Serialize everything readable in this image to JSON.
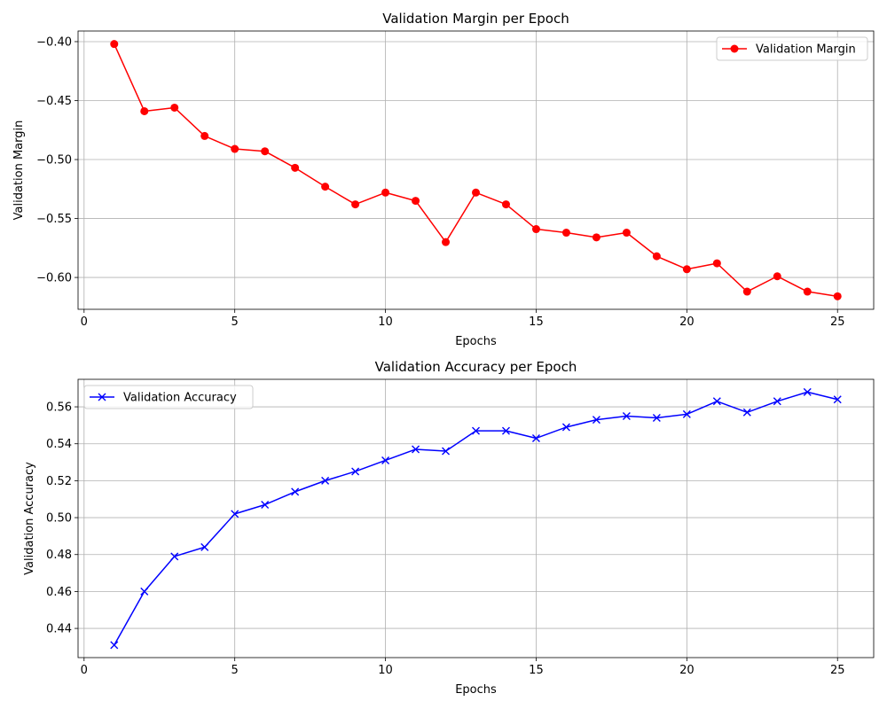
{
  "chart_data": [
    {
      "type": "line",
      "title": "Validation Margin per Epoch",
      "xlabel": "Epochs",
      "ylabel": "Validation Margin",
      "xlim": [
        -0.2,
        26.2
      ],
      "ylim": [
        -0.627,
        -0.391
      ],
      "xticks": [
        0,
        5,
        10,
        15,
        20,
        25
      ],
      "xtick_labels": [
        "0",
        "5",
        "10",
        "15",
        "20",
        "25"
      ],
      "yticks": [
        -0.4,
        -0.45,
        -0.5,
        -0.55,
        -0.6
      ],
      "ytick_labels": [
        "−0.40",
        "−0.45",
        "−0.50",
        "−0.55",
        "−0.60"
      ],
      "grid": true,
      "legend_position": "upper right",
      "series": [
        {
          "name": "Validation Margin",
          "color": "#ff0000",
          "marker": "circle",
          "x": [
            1,
            2,
            3,
            4,
            5,
            6,
            7,
            8,
            9,
            10,
            11,
            12,
            13,
            14,
            15,
            16,
            17,
            18,
            19,
            20,
            21,
            22,
            23,
            24,
            25
          ],
          "y": [
            -0.402,
            -0.459,
            -0.456,
            -0.48,
            -0.491,
            -0.493,
            -0.507,
            -0.523,
            -0.538,
            -0.528,
            -0.535,
            -0.57,
            -0.528,
            -0.538,
            -0.559,
            -0.562,
            -0.566,
            -0.562,
            -0.582,
            -0.593,
            -0.588,
            -0.612,
            -0.599,
            -0.612,
            -0.616
          ]
        }
      ]
    },
    {
      "type": "line",
      "title": "Validation Accuracy per Epoch",
      "xlabel": "Epochs",
      "ylabel": "Validation Accuracy",
      "xlim": [
        -0.2,
        26.2
      ],
      "ylim": [
        0.4242,
        0.5749
      ],
      "xticks": [
        0,
        5,
        10,
        15,
        20,
        25
      ],
      "xtick_labels": [
        "0",
        "5",
        "10",
        "15",
        "20",
        "25"
      ],
      "yticks": [
        0.44,
        0.46,
        0.48,
        0.5,
        0.52,
        0.54,
        0.56
      ],
      "ytick_labels": [
        "0.44",
        "0.46",
        "0.48",
        "0.50",
        "0.52",
        "0.54",
        "0.56"
      ],
      "grid": true,
      "legend_position": "upper left",
      "series": [
        {
          "name": "Validation Accuracy",
          "color": "#0000ff",
          "marker": "x",
          "x": [
            1,
            2,
            3,
            4,
            5,
            6,
            7,
            8,
            9,
            10,
            11,
            12,
            13,
            14,
            15,
            16,
            17,
            18,
            19,
            20,
            21,
            22,
            23,
            24,
            25
          ],
          "y": [
            0.431,
            0.46,
            0.479,
            0.484,
            0.502,
            0.507,
            0.514,
            0.52,
            0.525,
            0.531,
            0.537,
            0.536,
            0.547,
            0.547,
            0.543,
            0.549,
            0.553,
            0.555,
            0.554,
            0.556,
            0.563,
            0.557,
            0.563,
            0.568,
            0.564
          ]
        }
      ]
    }
  ]
}
